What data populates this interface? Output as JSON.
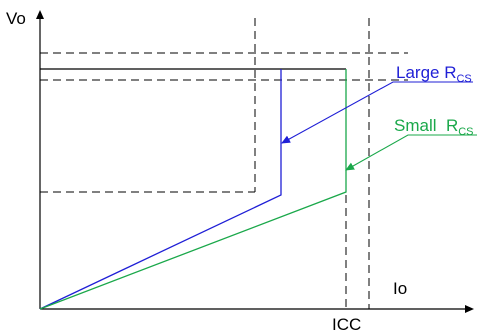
{
  "axes": {
    "y_label": "Vo",
    "x_label": "Io",
    "x_tick_label": "ICC"
  },
  "curves": [
    {
      "label_main": "Large R",
      "label_sub": "CS",
      "color": "#1f1fd6"
    },
    {
      "label_main": "Small  R",
      "label_sub": "CS",
      "color": "#1aa84a"
    }
  ],
  "colors": {
    "axis": "#000000",
    "dashed": "#000000",
    "large": "#1f1fd6",
    "small": "#1aa84a"
  }
}
